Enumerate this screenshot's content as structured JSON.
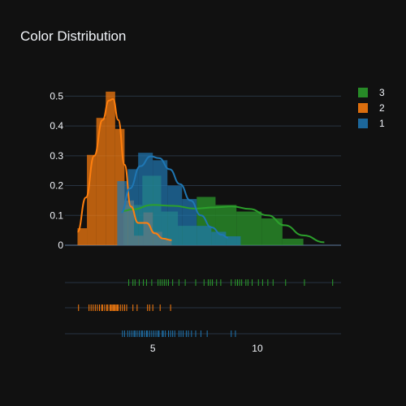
{
  "chart_data": {
    "type": "histogram",
    "title": "Color Distribution",
    "xlabel": "",
    "ylabel": "",
    "ylim": [
      0,
      0.55
    ],
    "xlim": [
      0.8,
      14.0
    ],
    "x_ticks": [
      5,
      10
    ],
    "y_ticks": [
      0,
      0.1,
      0.2,
      0.3,
      0.4,
      0.5
    ],
    "y_tick_labels": [
      "0",
      "0.1",
      "0.2",
      "0.3",
      "0.4",
      "0.5"
    ],
    "legend": {
      "position": "top-right",
      "entries": [
        "3",
        "2",
        "1"
      ]
    },
    "grid": true,
    "series": [
      {
        "name": "3",
        "color": "#2ca02c",
        "bins": [
          {
            "x0": 3.6,
            "x1": 4.5,
            "y": 0.135
          },
          {
            "x0": 4.5,
            "x1": 5.4,
            "y": 0.233
          },
          {
            "x0": 5.4,
            "x1": 6.2,
            "y": 0.113
          },
          {
            "x0": 6.2,
            "x1": 7.1,
            "y": 0.065
          },
          {
            "x0": 7.1,
            "x1": 8.0,
            "y": 0.162
          },
          {
            "x0": 8.0,
            "x1": 9.0,
            "y": 0.135
          },
          {
            "x0": 9.0,
            "x1": 10.2,
            "y": 0.113
          },
          {
            "x0": 10.2,
            "x1": 11.2,
            "y": 0.09
          },
          {
            "x0": 11.2,
            "x1": 12.2,
            "y": 0.022
          }
        ],
        "kde": [
          [
            3.6,
            0.115
          ],
          [
            4.0,
            0.12
          ],
          [
            5.0,
            0.135
          ],
          [
            6.0,
            0.132
          ],
          [
            7.0,
            0.123
          ],
          [
            8.0,
            0.127
          ],
          [
            8.8,
            0.13
          ],
          [
            9.6,
            0.122
          ],
          [
            10.5,
            0.1
          ],
          [
            11.3,
            0.067
          ],
          [
            12.2,
            0.033
          ],
          [
            13.2,
            0.01
          ]
        ],
        "rug": [
          3.85,
          4.05,
          4.15,
          4.35,
          4.55,
          4.7,
          4.95,
          5.25,
          5.35,
          5.45,
          5.55,
          5.65,
          5.75,
          5.95,
          6.25,
          6.55,
          7.05,
          7.45,
          7.65,
          7.75,
          7.85,
          8.05,
          8.25,
          8.75,
          8.95,
          9.05,
          9.15,
          9.25,
          9.45,
          9.55,
          9.75,
          10.05,
          10.25,
          10.5,
          10.75,
          11.35,
          12.25,
          13.6
        ]
      },
      {
        "name": "2",
        "color": "#ff7f0e",
        "bins": [
          {
            "x0": 1.4,
            "x1": 1.85,
            "y": 0.057
          },
          {
            "x0": 1.85,
            "x1": 2.3,
            "y": 0.303
          },
          {
            "x0": 2.3,
            "x1": 2.75,
            "y": 0.427
          },
          {
            "x0": 2.75,
            "x1": 3.2,
            "y": 0.515
          },
          {
            "x0": 3.2,
            "x1": 3.65,
            "y": 0.39
          },
          {
            "x0": 3.65,
            "x1": 4.1,
            "y": 0.15
          },
          {
            "x0": 4.1,
            "x1": 4.55,
            "y": 0.032
          },
          {
            "x0": 4.55,
            "x1": 5.0,
            "y": 0.11
          },
          {
            "x0": 5.0,
            "x1": 5.45,
            "y": 0.045
          },
          {
            "x0": 5.45,
            "x1": 5.9,
            "y": 0.018
          }
        ],
        "kde": [
          [
            1.4,
            0.045
          ],
          [
            1.8,
            0.16
          ],
          [
            2.2,
            0.3
          ],
          [
            2.6,
            0.42
          ],
          [
            2.9,
            0.485
          ],
          [
            3.1,
            0.49
          ],
          [
            3.35,
            0.42
          ],
          [
            3.65,
            0.27
          ],
          [
            3.95,
            0.13
          ],
          [
            4.3,
            0.075
          ],
          [
            4.7,
            0.075
          ],
          [
            5.1,
            0.04
          ],
          [
            5.5,
            0.022
          ],
          [
            5.9,
            0.017
          ]
        ],
        "rug": [
          1.45,
          1.95,
          2.05,
          2.15,
          2.25,
          2.35,
          2.45,
          2.55,
          2.6,
          2.7,
          2.8,
          2.85,
          2.95,
          3.0,
          3.05,
          3.1,
          3.15,
          3.2,
          3.25,
          3.3,
          3.35,
          3.45,
          3.55,
          3.65,
          3.75,
          4.05,
          4.25,
          4.75,
          4.85,
          5.0,
          5.35,
          5.85
        ]
      },
      {
        "name": "1",
        "color": "#1f77b4",
        "bins": [
          {
            "x0": 3.3,
            "x1": 3.8,
            "y": 0.215
          },
          {
            "x0": 3.8,
            "x1": 4.3,
            "y": 0.255
          },
          {
            "x0": 4.3,
            "x1": 5.0,
            "y": 0.31
          },
          {
            "x0": 5.0,
            "x1": 5.7,
            "y": 0.285
          },
          {
            "x0": 5.7,
            "x1": 6.4,
            "y": 0.2
          },
          {
            "x0": 6.4,
            "x1": 7.1,
            "y": 0.155
          },
          {
            "x0": 7.1,
            "x1": 7.8,
            "y": 0.065
          },
          {
            "x0": 7.8,
            "x1": 8.5,
            "y": 0.045
          },
          {
            "x0": 8.5,
            "x1": 9.2,
            "y": 0.03
          }
        ],
        "kde": [
          [
            3.5,
            0.11
          ],
          [
            3.9,
            0.19
          ],
          [
            4.4,
            0.265
          ],
          [
            4.9,
            0.298
          ],
          [
            5.3,
            0.292
          ],
          [
            5.8,
            0.255
          ],
          [
            6.3,
            0.205
          ],
          [
            6.8,
            0.15
          ],
          [
            7.3,
            0.1
          ],
          [
            7.8,
            0.06
          ],
          [
            8.3,
            0.035
          ],
          [
            8.6,
            0.025
          ]
        ],
        "rug": [
          3.55,
          3.65,
          3.8,
          3.9,
          4.0,
          4.1,
          4.15,
          4.25,
          4.35,
          4.45,
          4.5,
          4.6,
          4.7,
          4.75,
          4.85,
          4.95,
          5.05,
          5.15,
          5.25,
          5.3,
          5.45,
          5.5,
          5.6,
          5.75,
          5.85,
          5.95,
          6.05,
          6.25,
          6.35,
          6.45,
          6.6,
          6.7,
          6.85,
          7.05,
          7.3,
          7.6,
          8.75,
          8.95
        ]
      }
    ]
  }
}
